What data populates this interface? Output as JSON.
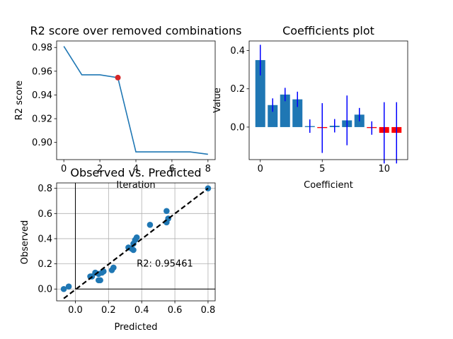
{
  "colors": {
    "line": "#1f77b4",
    "marker": "#d62728",
    "neg_bar": "#ff0000",
    "err": "#0000ff",
    "grid": "#b0b0b0"
  },
  "chart_data": [
    {
      "type": "line",
      "title": "R2 score over removed combinations",
      "xlabel": "Iteration",
      "ylabel": "R2 score",
      "x": [
        0,
        1,
        2,
        3,
        4,
        5,
        6,
        7,
        8
      ],
      "y": [
        0.981,
        0.957,
        0.957,
        0.9546,
        0.892,
        0.892,
        0.892,
        0.892,
        0.89
      ],
      "highlight": {
        "x": 3,
        "y": 0.9546
      },
      "xlim": [
        -0.4,
        8.4
      ],
      "ylim": [
        0.8855,
        0.9855
      ],
      "xticks": [
        0,
        2,
        4,
        6,
        8
      ],
      "yticks": [
        0.9,
        0.92,
        0.94,
        0.96,
        0.98
      ],
      "ytick_labels": [
        "0.90",
        "0.92",
        "0.94",
        "0.96",
        "0.98"
      ]
    },
    {
      "type": "bar",
      "title": "Coefficients plot",
      "xlabel": "Coefficient",
      "ylabel": "Value",
      "x": [
        0,
        1,
        2,
        3,
        4,
        5,
        6,
        7,
        8,
        9,
        10,
        11
      ],
      "values": [
        0.35,
        0.115,
        0.17,
        0.145,
        0.005,
        -0.005,
        0.007,
        0.035,
        0.065,
        -0.005,
        -0.03,
        -0.03
      ],
      "errors": [
        0.08,
        0.035,
        0.035,
        0.04,
        0.035,
        0.13,
        0.035,
        0.13,
        0.035,
        0.035,
        0.16,
        0.16
      ],
      "xlim": [
        -0.9,
        11.9
      ],
      "ylim": [
        -0.17,
        0.45
      ],
      "xticks": [
        0,
        5,
        10
      ],
      "yticks": [
        0.0,
        0.2,
        0.4
      ],
      "ytick_labels": [
        "0.0",
        "0.2",
        "0.4"
      ]
    },
    {
      "type": "scatter",
      "title": "Observed vs. Predicted",
      "xlabel": "Predicted",
      "ylabel": "Observed",
      "x": [
        -0.07,
        -0.04,
        0.09,
        0.1,
        0.12,
        0.14,
        0.14,
        0.15,
        0.16,
        0.17,
        0.22,
        0.23,
        0.32,
        0.34,
        0.35,
        0.35,
        0.36,
        0.37,
        0.45,
        0.55,
        0.55,
        0.56,
        0.8
      ],
      "y": [
        0.0,
        0.02,
        0.1,
        0.1,
        0.13,
        0.07,
        0.12,
        0.07,
        0.13,
        0.14,
        0.15,
        0.17,
        0.33,
        0.32,
        0.31,
        0.36,
        0.39,
        0.41,
        0.51,
        0.62,
        0.53,
        0.56,
        0.8
      ],
      "fit_line": {
        "x": [
          -0.07,
          0.8
        ],
        "y": [
          -0.075,
          0.8
        ]
      },
      "annotation": "R2: 0.95461",
      "annotation_pos": {
        "x": 0.37,
        "y": 0.2
      },
      "xlim": [
        -0.113,
        0.843
      ],
      "ylim": [
        -0.094,
        0.843
      ],
      "xticks": [
        0.0,
        0.2,
        0.4,
        0.6,
        0.8
      ],
      "yticks": [
        0.0,
        0.2,
        0.4,
        0.6,
        0.8
      ],
      "tick_labels": [
        "0.0",
        "0.2",
        "0.4",
        "0.6",
        "0.8"
      ],
      "grid": true
    }
  ]
}
